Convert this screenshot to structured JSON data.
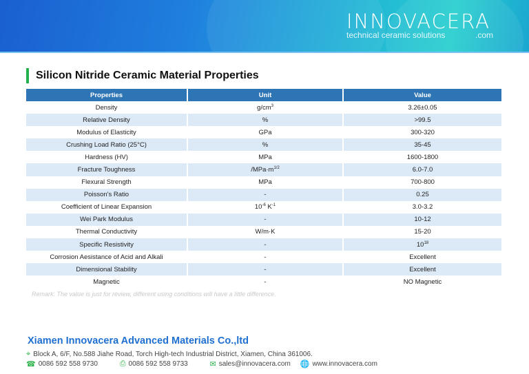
{
  "header": {
    "logo": "INNOVACERA",
    "tagline": "technical ceramic solutions",
    "domain_suffix": ".com"
  },
  "title": "Silicon Nitride Ceramic Material Properties",
  "table": {
    "headers": [
      "Properties",
      "Unit",
      "Value"
    ],
    "rows": [
      {
        "property": "Density",
        "unit": "g/cm",
        "unit_sup": "3",
        "value": "3.26±0.05"
      },
      {
        "property": "Relative Density",
        "unit": "%",
        "value": ">99.5"
      },
      {
        "property": "Modulus of Elasticity",
        "unit": "GPa",
        "value": "300-320"
      },
      {
        "property": "Crushing Load Ratio (25°C)",
        "unit": "%",
        "value": "35-45"
      },
      {
        "property": "Hardness (HV)",
        "unit": "MPa",
        "value": "1600-1800"
      },
      {
        "property": "Fracture Toughness",
        "unit": "/MPa·m",
        "unit_sup": "1/2",
        "value": "6.0-7.0"
      },
      {
        "property": "Flexural Strength",
        "unit": "MPa",
        "value": "700-800"
      },
      {
        "property": "Poisson's Ratio",
        "unit": "-",
        "value": "0.25"
      },
      {
        "property": "Coefficient of Linear Expansion",
        "unit": "10",
        "unit_sup": "-6",
        "unit_tail": " K",
        "unit_tail_sup": "-1",
        "value": "3.0-3.2"
      },
      {
        "property": "Wei Park Modulus",
        "unit": "-",
        "value": "10-12"
      },
      {
        "property": "Thermal Conductivity",
        "unit": "W/m·K",
        "value": "15-20"
      },
      {
        "property": "Specific Resistivity",
        "unit": "-",
        "value": "10",
        "value_sup": "18"
      },
      {
        "property": "Corrosion Aesistance of Acid and Alkali",
        "unit": "-",
        "value": "Excellent"
      },
      {
        "property": "Dimensional Stability",
        "unit": "-",
        "value": "Excellent"
      },
      {
        "property": "Magnetic",
        "unit": "-",
        "value": "NO Magnetic"
      }
    ]
  },
  "remark": "Remark: The value is just for review, different using conditions will have a little difference.",
  "footer": {
    "company": "Xiamen Innovacera Advanced Materials Co.,ltd",
    "address": "Block A, 6/F, No.588 Jiahe Road, Torch High-tech Industrial District, Xiamen, China 361006.",
    "phone": "0086 592 558 9730",
    "fax": "0086 592 558 9733",
    "email": "sales@innovacera.com",
    "website": "www.innovacera.com"
  },
  "colors": {
    "header_blue": "#2e75b6",
    "row_alt": "#dce9f6",
    "accent_green": "#22b14c",
    "company_blue": "#1e6fd0"
  }
}
